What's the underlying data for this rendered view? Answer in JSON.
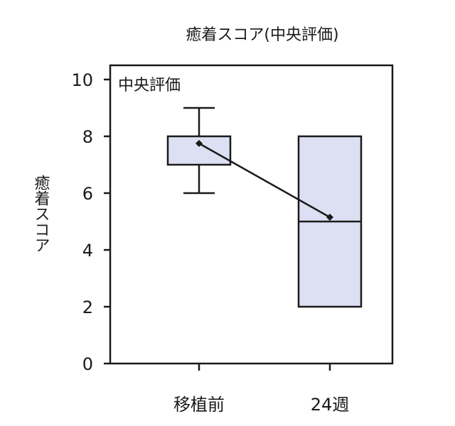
{
  "chart_data": {
    "type": "box",
    "title": "癒着スコア(中央評価)",
    "panel_label": "中央評価",
    "ylabel": "癒着スコア",
    "ylim": [
      0,
      10
    ],
    "yticks": [
      0,
      2,
      4,
      6,
      8,
      10
    ],
    "categories": [
      "移植前",
      "24週"
    ],
    "boxes": [
      {
        "category": "移植前",
        "whisker_low": 6,
        "q1": 7,
        "median": 8,
        "q3": 8,
        "whisker_high": 9,
        "mean": 7.75
      },
      {
        "category": "24週",
        "q1": 2,
        "median": 5,
        "q3": 8,
        "mean": 5.15
      }
    ],
    "colors": {
      "box_fill": "#dde0f3",
      "stroke": "#1a1a1a"
    },
    "grid": false
  }
}
